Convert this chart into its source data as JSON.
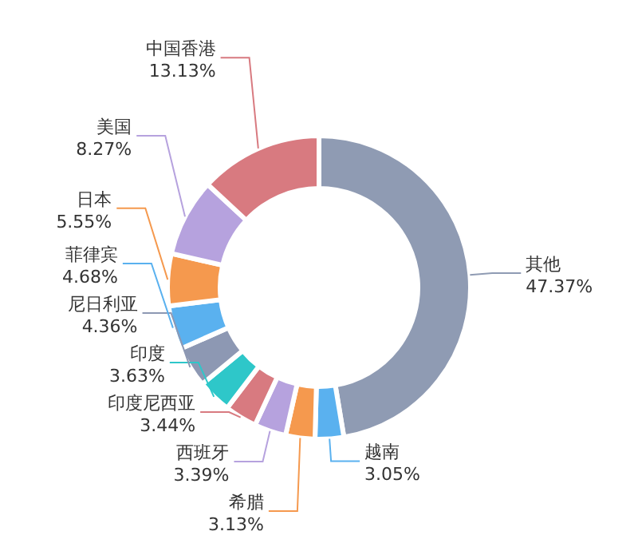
{
  "chart_data": {
    "type": "donut",
    "categories": [
      "其他",
      "越南",
      "希腊",
      "西班牙",
      "印度尼西亚",
      "印度",
      "尼日利亚",
      "菲律宾",
      "日本",
      "美国",
      "中国香港"
    ],
    "values": [
      47.37,
      3.05,
      3.13,
      3.39,
      3.44,
      3.63,
      4.36,
      4.68,
      5.55,
      8.27,
      13.13
    ],
    "colors": [
      "#8f9bb3",
      "#5ab1ef",
      "#f5994e",
      "#b6a2de",
      "#d87a80",
      "#2ec7c9",
      "#8d98b3",
      "#5ab1ef",
      "#f5994e",
      "#b6a2de",
      "#d87a80"
    ],
    "value_labels": [
      "47.37%",
      "3.05%",
      "3.13%",
      "3.39%",
      "3.44%",
      "3.63%",
      "4.36%",
      "4.68%",
      "5.55%",
      "8.27%",
      "13.13%"
    ]
  }
}
